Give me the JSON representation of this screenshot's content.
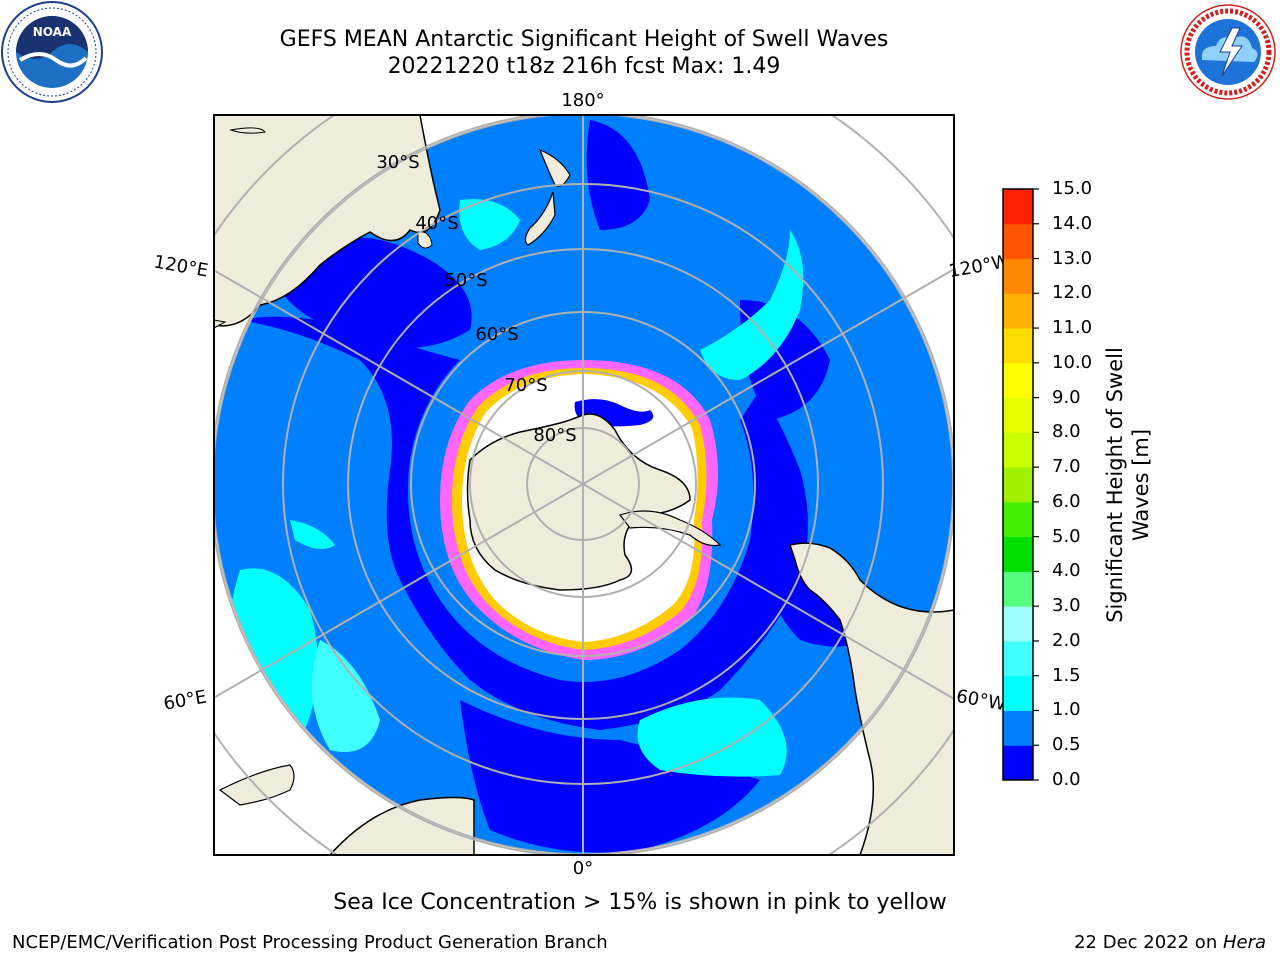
{
  "title": {
    "line1": "GEFS MEAN Antarctic Significant Height of Swell Waves",
    "line2": "20221220 t18z 216h fcst   Max: 1.49"
  },
  "logos": {
    "left": {
      "name": "noaa-logo",
      "text": "NOAA",
      "ring_text": "NATIONAL OCEANIC AND ATMOSPHERIC ADMINISTRATION · U.S. DEPARTMENT OF COMMERCE"
    },
    "right": {
      "name": "nws-logo",
      "ring_text": "NATIONAL WEATHER SERVICE"
    }
  },
  "map": {
    "projection": "south-polar-stereographic",
    "longitude_labels": [
      "180°",
      "120°E",
      "120°W",
      "60°E",
      "60°W",
      "0°"
    ],
    "latitude_labels": [
      "30°S",
      "40°S",
      "50°S",
      "60°S",
      "70°S",
      "80°S"
    ],
    "colors": {
      "land": "#efecdc",
      "ice": "#ffffff",
      "gridlines": "#b0b0b0",
      "frame": "#000000"
    }
  },
  "colorbar": {
    "title": "Significant Height of Swell Waves [m]",
    "title_lines": [
      "Significant Height of Swell",
      "Waves [m]"
    ],
    "ticks": [
      "0.0",
      "0.5",
      "1.0",
      "1.5",
      "2.0",
      "3.0",
      "4.0",
      "5.0",
      "6.0",
      "7.0",
      "8.0",
      "9.0",
      "10.0",
      "11.0",
      "12.0",
      "13.0",
      "14.0",
      "15.0"
    ],
    "colors": [
      "#0000ff",
      "#0080ff",
      "#00ffff",
      "#40ffff",
      "#a0ffff",
      "#55ff80",
      "#00e000",
      "#40f000",
      "#a0f000",
      "#c8ff00",
      "#e6ff00",
      "#ffff00",
      "#ffdd00",
      "#ffb000",
      "#ff8800",
      "#ff5500",
      "#ff2200",
      "#ff0000"
    ]
  },
  "note": "Sea Ice Concentration > 15% is shown in pink to yellow",
  "footer": {
    "left": "NCEP/EMC/Verification Post Processing Product Generation Branch",
    "right_prefix": "22 Dec 2022 on ",
    "right_host": "Hera"
  }
}
